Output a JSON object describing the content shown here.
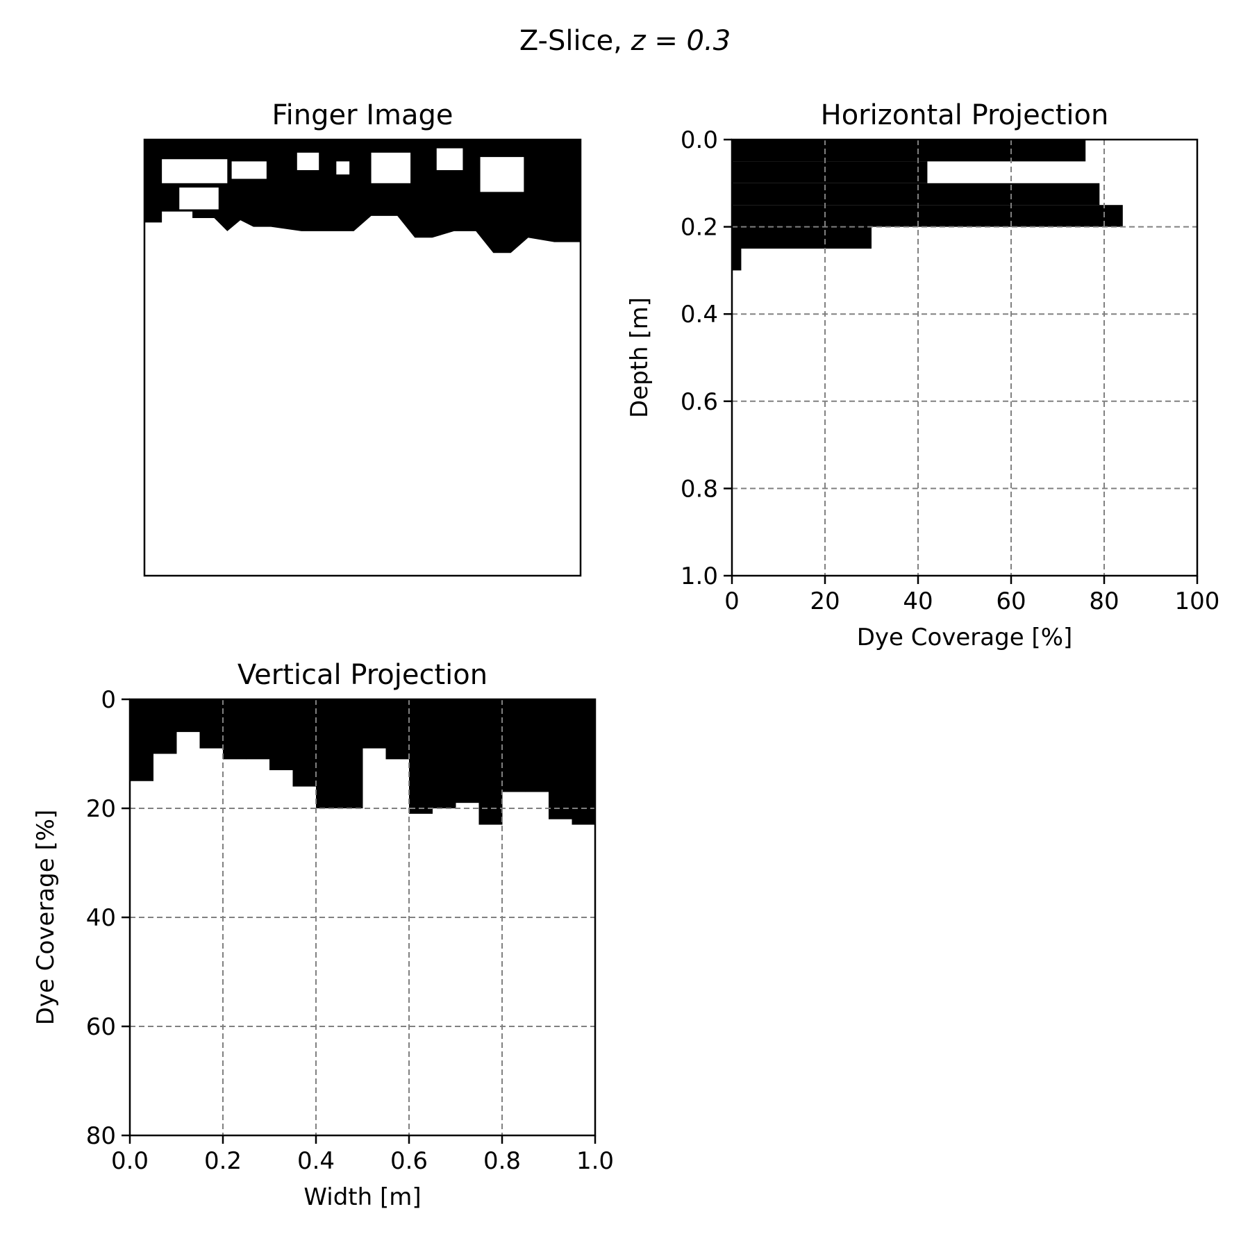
{
  "figure": {
    "suptitle": "Z-Slice, ",
    "suptitle_math": "z = 0.3"
  },
  "chart_data": [
    {
      "type": "heatmap",
      "title": "Finger Image",
      "xlabel": "",
      "ylabel": "",
      "colors": {
        "dye": "#000000",
        "background": "#ffffff"
      },
      "extent": {
        "x": [
          0,
          1
        ],
        "y": [
          0,
          1
        ]
      },
      "dye_boundary": {
        "description_units": "width [m] vs depth [m]",
        "top_dye_band": [
          0,
          0.045
        ],
        "profile": [
          [
            0.0,
            0.19
          ],
          [
            0.04,
            0.19
          ],
          [
            0.04,
            0.165
          ],
          [
            0.11,
            0.165
          ],
          [
            0.11,
            0.18
          ],
          [
            0.16,
            0.18
          ],
          [
            0.19,
            0.21
          ],
          [
            0.22,
            0.185
          ],
          [
            0.25,
            0.2
          ],
          [
            0.29,
            0.2
          ],
          [
            0.36,
            0.21
          ],
          [
            0.48,
            0.21
          ],
          [
            0.52,
            0.175
          ],
          [
            0.58,
            0.175
          ],
          [
            0.62,
            0.225
          ],
          [
            0.66,
            0.225
          ],
          [
            0.71,
            0.21
          ],
          [
            0.76,
            0.21
          ],
          [
            0.8,
            0.26
          ],
          [
            0.84,
            0.26
          ],
          [
            0.88,
            0.225
          ],
          [
            0.94,
            0.235
          ],
          [
            1.0,
            0.235
          ]
        ]
      }
    },
    {
      "type": "bar",
      "orientation": "horizontal",
      "title": "Horizontal Projection",
      "xlabel": "Dye Coverage [%]",
      "ylabel": "Depth [m]",
      "xlim": [
        0,
        100
      ],
      "ylim": [
        1.0,
        0.0
      ],
      "xticks": [
        "0",
        "20",
        "40",
        "60",
        "80",
        "100"
      ],
      "yticks": [
        "0.0",
        "0.2",
        "0.4",
        "0.6",
        "0.8",
        "1.0"
      ],
      "grid": true,
      "bin_edges": [
        0.0,
        0.05,
        0.1,
        0.15,
        0.2,
        0.25,
        0.3
      ],
      "values": [
        76,
        42,
        79,
        84,
        30,
        2
      ]
    },
    {
      "type": "bar",
      "title": "Vertical Projection",
      "xlabel": "Width [m]",
      "ylabel": "Dye Coverage [%]",
      "xlim": [
        0.0,
        1.0
      ],
      "ylim": [
        80,
        0
      ],
      "xticks": [
        "0.0",
        "0.2",
        "0.4",
        "0.6",
        "0.8",
        "1.0"
      ],
      "yticks": [
        "0",
        "20",
        "40",
        "60",
        "80"
      ],
      "grid": true,
      "bin_edges": [
        0.0,
        0.05,
        0.1,
        0.15,
        0.2,
        0.25,
        0.3,
        0.35,
        0.4,
        0.45,
        0.5,
        0.55,
        0.6,
        0.65,
        0.7,
        0.75,
        0.8,
        0.85,
        0.9,
        0.95,
        1.0
      ],
      "values": [
        15,
        10,
        6,
        9,
        11,
        11,
        13,
        16,
        20,
        20,
        9,
        11,
        21,
        20,
        19,
        23,
        17,
        17,
        22,
        23
      ]
    }
  ]
}
